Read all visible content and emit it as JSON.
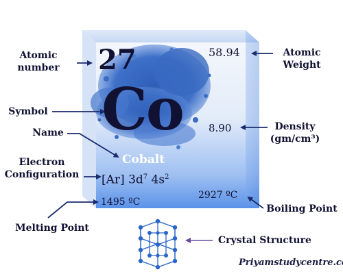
{
  "element": {
    "atomic_number": "27",
    "atomic_weight": "58.94",
    "symbol": "Co",
    "density": "8.90",
    "name": "Cobalt",
    "configuration_core": "[Ar] 3d",
    "configuration_d_exp": "7",
    "configuration_s": " 4s",
    "configuration_s_exp": "2",
    "melting_point": "1495 ºC",
    "boiling_point": "2927 ºC"
  },
  "callouts": {
    "atomic_number_line1": "Atomic",
    "atomic_number_line2": "number",
    "atomic_weight_line1": "Atomic",
    "atomic_weight_line2": "Weight",
    "symbol": "Symbol",
    "name": "Name",
    "density_line1": "Density",
    "density_line2": "(gm/cm³)",
    "electron_line1": "Electron",
    "electron_line2": "Configuration",
    "melting_point": "Melting Point",
    "boiling_point": "Boiling Point",
    "crystal_structure": "Crystal Structure"
  },
  "watermark": "Priyamstudycentre.com",
  "colors": {
    "cube_top": "#eef3fb",
    "cube_bottom": "#5f97ea",
    "powder": "#3d6fc4",
    "text_dark": "#111133",
    "arrow": "#1a2a6c",
    "crystal_arrow": "#6b4a9e"
  }
}
